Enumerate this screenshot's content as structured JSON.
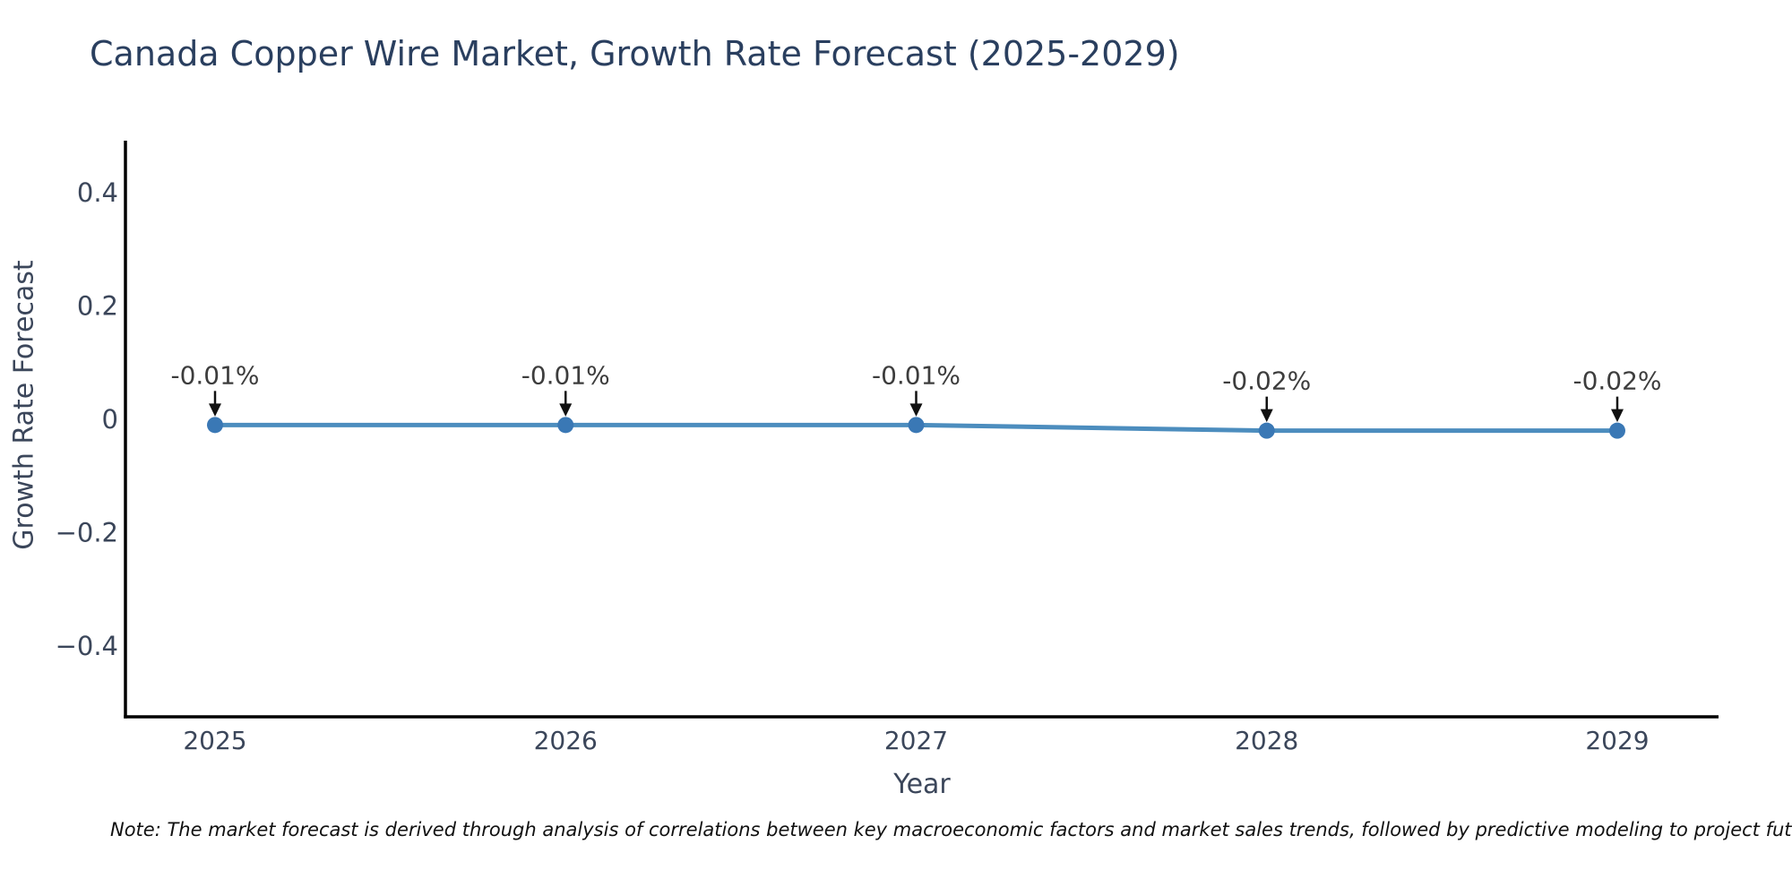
{
  "chart_data": {
    "type": "line",
    "title": "Canada Copper Wire Market, Growth Rate Forecast (2025-2029)",
    "xlabel": "Year",
    "ylabel": "Growth Rate Forecast",
    "x": [
      "2025",
      "2026",
      "2027",
      "2028",
      "2029"
    ],
    "values": [
      -0.01,
      -0.01,
      -0.01,
      -0.02,
      -0.02
    ],
    "point_labels": [
      "-0.01%",
      "-0.01%",
      "-0.01%",
      "-0.02%",
      "-0.02%"
    ],
    "xtick_labels": [
      "2025",
      "2026",
      "2027",
      "2028",
      "2029"
    ],
    "ytick_values": [
      0.4,
      0.2,
      0,
      -0.2,
      -0.4
    ],
    "ytick_labels": [
      "0.4",
      "0.2",
      "0",
      "−0.2",
      "−0.4"
    ],
    "ylim": [
      -0.52,
      0.49
    ],
    "grid": false,
    "legend": false,
    "colors": {
      "line": "#4c8dbe",
      "marker": "#3a78b5",
      "axis": "#000000",
      "annotation_text": "#3d3d3d",
      "annotation_arrow": "#111111",
      "tick_text": "#3b465a",
      "title_text": "#2a3f5f"
    }
  },
  "note": "Note: The market forecast is derived through analysis of correlations between key macroeconomic factors and market sales trends, followed by predictive modeling to project future sales."
}
